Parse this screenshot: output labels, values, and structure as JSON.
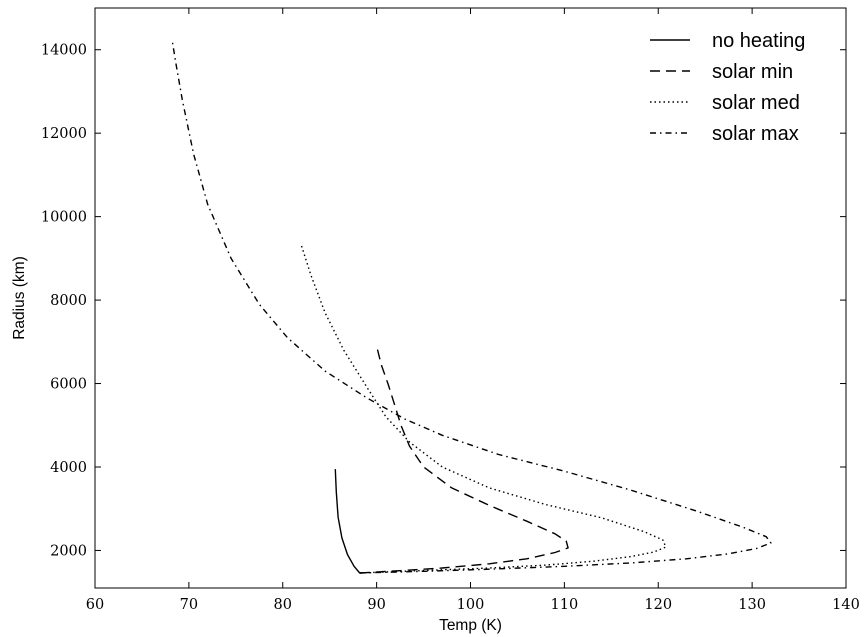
{
  "chart_data": {
    "type": "line",
    "xlabel": "Temp (K)",
    "ylabel": "Radius (km)",
    "xlim": [
      60,
      140
    ],
    "ylim": [
      1100,
      15000
    ],
    "xticks": [
      60,
      70,
      80,
      90,
      100,
      110,
      120,
      130,
      140
    ],
    "yticks": [
      2000,
      4000,
      6000,
      8000,
      10000,
      12000,
      14000
    ],
    "grid": false,
    "legend_position": "top-right",
    "series": [
      {
        "name": "no heating",
        "linestyle": "solid",
        "color": "#000000",
        "points": [
          [
            85.6,
            3950
          ],
          [
            85.7,
            3400
          ],
          [
            85.9,
            2800
          ],
          [
            86.3,
            2300
          ],
          [
            86.9,
            1900
          ],
          [
            87.6,
            1620
          ],
          [
            88.2,
            1460
          ]
        ]
      },
      {
        "name": "solar min",
        "linestyle": "dashed",
        "color": "#000000",
        "points": [
          [
            88.2,
            1460
          ],
          [
            92,
            1510
          ],
          [
            97,
            1580
          ],
          [
            102,
            1680
          ],
          [
            106,
            1800
          ],
          [
            109,
            1950
          ],
          [
            110.4,
            2060
          ],
          [
            110.2,
            2220
          ],
          [
            109,
            2400
          ],
          [
            106,
            2700
          ],
          [
            102,
            3080
          ],
          [
            98,
            3500
          ],
          [
            95,
            4000
          ],
          [
            93.5,
            4500
          ],
          [
            92.6,
            5000
          ],
          [
            91.9,
            5500
          ],
          [
            91.2,
            6000
          ],
          [
            90.5,
            6450
          ],
          [
            90,
            6900
          ]
        ]
      },
      {
        "name": "solar med",
        "linestyle": "dotted",
        "color": "#000000",
        "points": [
          [
            88.2,
            1460
          ],
          [
            95,
            1520
          ],
          [
            102,
            1580
          ],
          [
            108,
            1650
          ],
          [
            113,
            1740
          ],
          [
            117,
            1850
          ],
          [
            119.5,
            1960
          ],
          [
            120.8,
            2080
          ],
          [
            120.5,
            2250
          ],
          [
            118.5,
            2450
          ],
          [
            114,
            2780
          ],
          [
            108,
            3100
          ],
          [
            102,
            3500
          ],
          [
            97,
            4000
          ],
          [
            93.5,
            4600
          ],
          [
            91,
            5200
          ],
          [
            89,
            5900
          ],
          [
            86.5,
            6800
          ],
          [
            84.5,
            7700
          ],
          [
            83,
            8600
          ],
          [
            82,
            9300
          ]
        ]
      },
      {
        "name": "solar max",
        "linestyle": "dashdot",
        "color": "#000000",
        "points": [
          [
            88.2,
            1460
          ],
          [
            95,
            1500
          ],
          [
            102,
            1550
          ],
          [
            110,
            1620
          ],
          [
            117,
            1700
          ],
          [
            123,
            1800
          ],
          [
            127.5,
            1920
          ],
          [
            130.5,
            2050
          ],
          [
            132,
            2180
          ],
          [
            131.5,
            2330
          ],
          [
            129,
            2560
          ],
          [
            124,
            2950
          ],
          [
            117,
            3450
          ],
          [
            110,
            3900
          ],
          [
            103,
            4300
          ],
          [
            97,
            4760
          ],
          [
            93,
            5150
          ],
          [
            89,
            5650
          ],
          [
            84.5,
            6300
          ],
          [
            80.5,
            7100
          ],
          [
            77.5,
            7900
          ],
          [
            74.5,
            9000
          ],
          [
            72,
            10300
          ],
          [
            70.5,
            11500
          ],
          [
            69.3,
            12800
          ],
          [
            68.6,
            13700
          ],
          [
            68.2,
            14250
          ]
        ]
      }
    ]
  }
}
